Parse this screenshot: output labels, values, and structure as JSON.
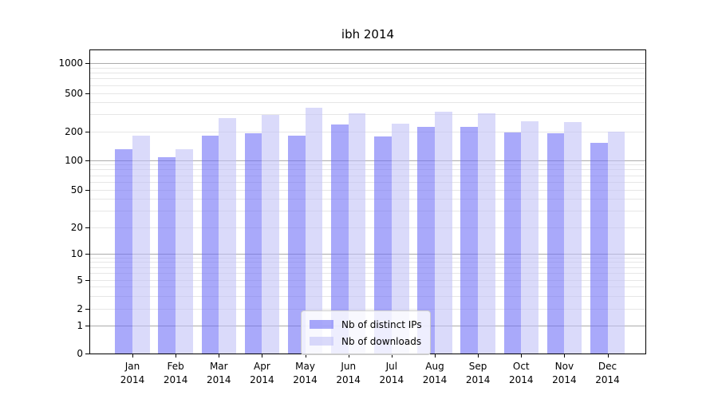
{
  "chart_data": {
    "type": "bar",
    "title": "ibh 2014",
    "categories": [
      "Jan 2014",
      "Feb 2014",
      "Mar 2014",
      "Apr 2014",
      "May 2014",
      "Jun 2014",
      "Jul 2014",
      "Aug 2014",
      "Sep 2014",
      "Oct 2014",
      "Nov 2014",
      "Dec 2014"
    ],
    "series": [
      {
        "name": "Nb of distinct IPs",
        "color": "#7070f7",
        "values": [
          130,
          108,
          180,
          190,
          180,
          235,
          176,
          222,
          222,
          195,
          190,
          152
        ]
      },
      {
        "name": "Nb of downloads",
        "color": "#c1c1f6",
        "values": [
          180,
          130,
          272,
          295,
          352,
          308,
          240,
          322,
          305,
          252,
          248,
          198
        ]
      }
    ],
    "xlabel": "",
    "ylabel": "",
    "y_scale": "symlog",
    "y_ticks": [
      0,
      1,
      2,
      5,
      10,
      20,
      50,
      100,
      200,
      500,
      1000
    ],
    "ylim": [
      0,
      1345
    ],
    "grid": {
      "major_at": [
        1,
        10,
        100,
        1000
      ],
      "minor": "2-9 within each decade"
    },
    "legend_position": "lower center"
  }
}
